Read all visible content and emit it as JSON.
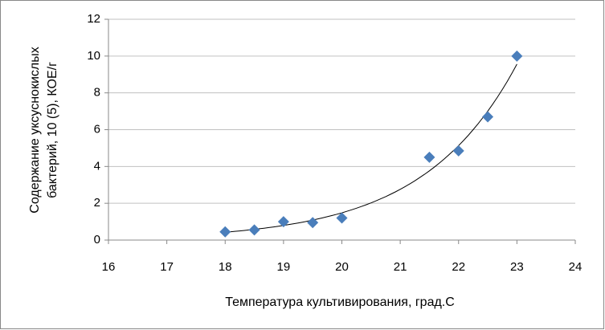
{
  "chart_data": {
    "type": "scatter",
    "x_label": "Температура культивирования, град.С",
    "y_label": [
      "Содержание уксуснокислых",
      "бактерий, 10 (5), КОЕ/г"
    ],
    "x": [
      18,
      18.5,
      19,
      19.5,
      20,
      21.5,
      22,
      22.5,
      23
    ],
    "values": [
      0.45,
      0.55,
      1.0,
      0.95,
      1.2,
      4.5,
      4.85,
      6.7,
      10.0
    ],
    "color": "#4a7ebb",
    "trendline": "exponential",
    "xlim": [
      16,
      24
    ],
    "xticks": [
      16,
      17,
      18,
      19,
      20,
      21,
      22,
      23,
      24
    ],
    "ylim": [
      0,
      12
    ],
    "yticks": [
      0,
      2,
      4,
      6,
      8,
      10,
      12
    ],
    "grid": true
  }
}
